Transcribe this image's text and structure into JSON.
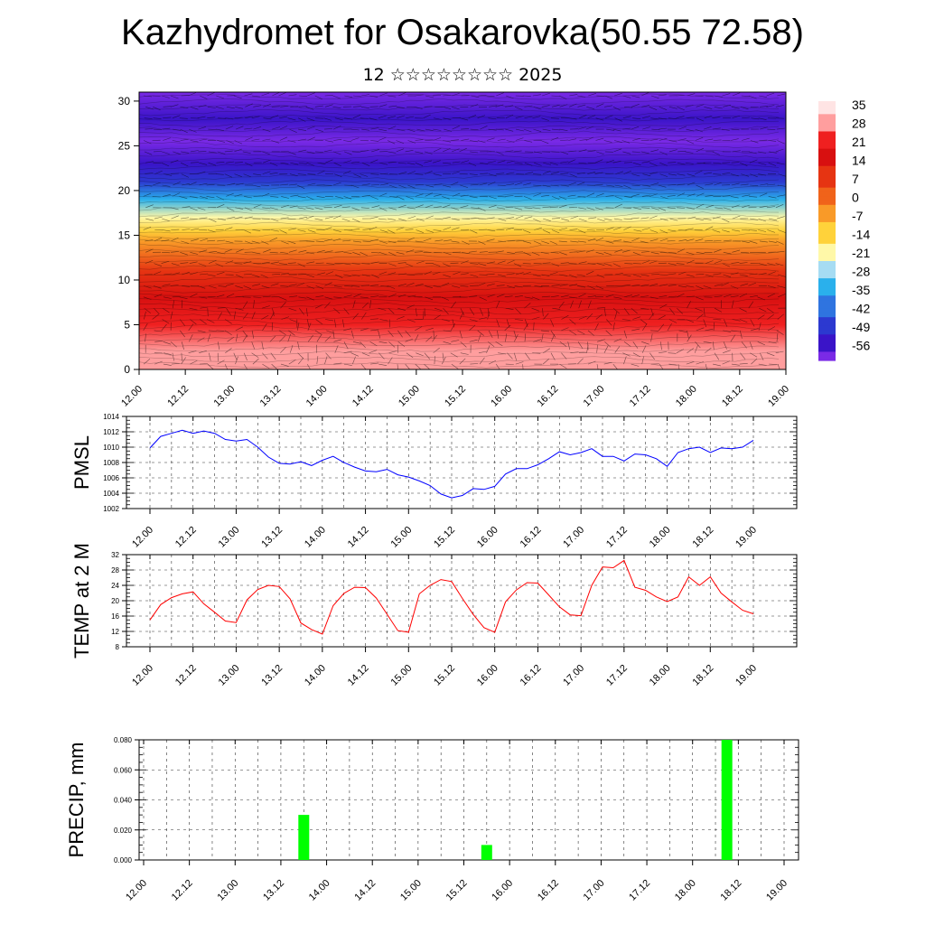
{
  "header": {
    "title": "Kazhydromet for Osakarovka(50.55 72.58)",
    "subtitle": "12 ☆☆☆☆☆☆☆☆ 2025"
  },
  "time_ticks": [
    "12.00",
    "12.12",
    "13.00",
    "13.12",
    "14.00",
    "14.12",
    "15.00",
    "15.12",
    "16.00",
    "16.12",
    "17.00",
    "17.12",
    "18.00",
    "18.12",
    "19.00"
  ],
  "colors": {
    "pmsl_line": "#0000ff",
    "temp_line": "#ff0000",
    "precip_bar": "#00ff00",
    "grid": "#000000"
  },
  "chart_data": [
    {
      "type": "heatmap",
      "name": "vertical-cross-section",
      "y_axis": {
        "ylim": [
          0,
          31
        ],
        "ticks": [
          "0",
          "5",
          "10",
          "15",
          "20",
          "25",
          "30"
        ]
      },
      "colorbar": {
        "labels": [
          "35",
          "28",
          "21",
          "14",
          "7",
          "0",
          "-7",
          "-14",
          "-21",
          "-28",
          "-35",
          "-42",
          "-49",
          "-56"
        ],
        "colors": [
          "#ffe4e4",
          "#ff9e9e",
          "#ef2020",
          "#d81010",
          "#e63412",
          "#f0631a",
          "#f99a28",
          "#ffd23a",
          "#fff8a8",
          "#a6dcf3",
          "#2ab0ec",
          "#2f74e0",
          "#2c39d0",
          "#3a14c8",
          "#7a2ae6"
        ]
      },
      "series": [
        {
          "y": [
            0,
            2,
            5,
            8,
            11,
            14.3,
            15.5,
            17,
            19,
            21,
            23,
            25.5,
            28,
            31
          ],
          "values": [
            30,
            26,
            21,
            15,
            6,
            -6,
            -14,
            -22,
            -33,
            -45,
            -52,
            -57,
            -52,
            -58
          ]
        }
      ]
    },
    {
      "type": "line",
      "name": "pmsl",
      "ylabel": "PMSL",
      "ylim": [
        1002,
        1014
      ],
      "yticks": [
        "1002",
        "1004",
        "1006",
        "1008",
        "1010",
        "1012",
        "1014"
      ],
      "series": [
        {
          "x": [
            0,
            3,
            6,
            9,
            12,
            15,
            18,
            21,
            24,
            27,
            30,
            33,
            36,
            39,
            42,
            45,
            48,
            51,
            54,
            57,
            60,
            63,
            66,
            69,
            72,
            75,
            78,
            81,
            84,
            87,
            90,
            93,
            96,
            99,
            102,
            105,
            108,
            111,
            114,
            117,
            120,
            123,
            126,
            129,
            132,
            135,
            138,
            141,
            144,
            147,
            150,
            153,
            156,
            159,
            162,
            165,
            168
          ],
          "values": [
            1009.9,
            1011.4,
            1011.8,
            1012.2,
            1011.8,
            1012.1,
            1011.8,
            1011.0,
            1010.8,
            1011.0,
            1010.0,
            1008.7,
            1007.9,
            1007.8,
            1008.1,
            1007.6,
            1008.3,
            1008.8,
            1008.0,
            1007.4,
            1006.9,
            1006.8,
            1007.1,
            1006.4,
            1006.1,
            1005.6,
            1005.0,
            1003.9,
            1003.4,
            1003.7,
            1004.6,
            1004.5,
            1004.9,
            1006.5,
            1007.2,
            1007.2,
            1007.7,
            1008.5,
            1009.4,
            1009.0,
            1009.3,
            1009.8,
            1008.8,
            1008.8,
            1008.2,
            1009.1,
            1009.0,
            1008.5,
            1007.5,
            1009.3,
            1009.8,
            1010.0,
            1009.3,
            1009.9,
            1009.8,
            1010.0,
            1010.9
          ]
        }
      ]
    },
    {
      "type": "line",
      "name": "temp-2m",
      "ylabel": "TEMP at 2 M",
      "ylim": [
        8,
        32
      ],
      "yticks": [
        "8",
        "12",
        "16",
        "20",
        "24",
        "28",
        "32"
      ],
      "series": [
        {
          "x": [
            0,
            3,
            6,
            9,
            12,
            15,
            18,
            21,
            24,
            27,
            30,
            33,
            36,
            39,
            42,
            45,
            48,
            51,
            54,
            57,
            60,
            63,
            66,
            69,
            72,
            75,
            78,
            81,
            84,
            87,
            90,
            93,
            96,
            99,
            102,
            105,
            108,
            111,
            114,
            117,
            120,
            123,
            126,
            129,
            132,
            135,
            138,
            141,
            144,
            147,
            150,
            153,
            156,
            159,
            162,
            165,
            168
          ],
          "values": [
            15.0,
            19.0,
            20.8,
            21.8,
            22.3,
            19.2,
            17.0,
            14.7,
            14.3,
            20.2,
            22.9,
            24.0,
            23.7,
            20.5,
            14.2,
            12.5,
            11.3,
            18.7,
            21.9,
            23.5,
            23.4,
            20.7,
            16.5,
            12.2,
            11.8,
            21.8,
            24.0,
            25.5,
            25.0,
            20.6,
            16.4,
            13.0,
            11.8,
            19.7,
            22.8,
            24.7,
            24.6,
            21.5,
            18.4,
            16.3,
            16.1,
            24.0,
            28.8,
            28.6,
            30.5,
            23.5,
            22.7,
            21.0,
            19.8,
            21.0,
            26.2,
            24.0,
            26.2,
            22.0,
            19.7,
            17.5,
            16.6
          ]
        }
      ]
    },
    {
      "type": "bar",
      "name": "precip",
      "ylabel": "PRECIP, mm",
      "ylim": [
        0,
        0.08
      ],
      "yticks": [
        "0.000",
        "0.020",
        "0.040",
        "0.060",
        "0.080"
      ],
      "series": [
        {
          "x": [
            42,
            90,
            153
          ],
          "values": [
            0.03,
            0.01,
            0.08
          ]
        }
      ]
    }
  ]
}
